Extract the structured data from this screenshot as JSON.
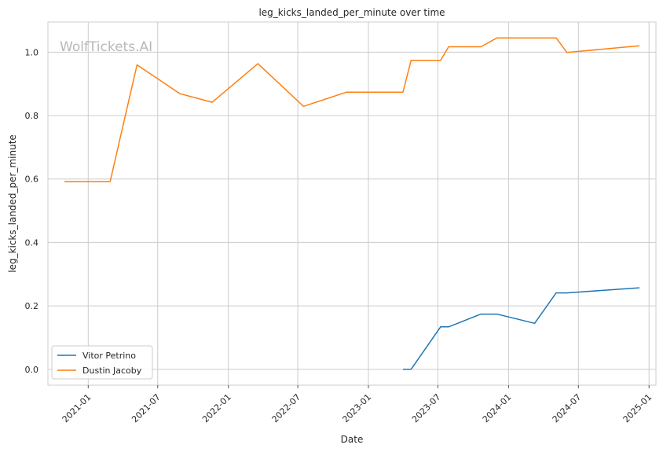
{
  "chart_data": {
    "type": "line",
    "title": "leg_kicks_landed_per_minute over time",
    "xlabel": "Date",
    "ylabel": "leg_kicks_landed_per_minute",
    "watermark": "WolfTickets.AI",
    "x_ticks": [
      "2021-01",
      "2021-07",
      "2022-01",
      "2022-07",
      "2023-01",
      "2023-07",
      "2024-01",
      "2024-07",
      "2025-01"
    ],
    "y_ticks": [
      0.0,
      0.2,
      0.4,
      0.6,
      0.8,
      1.0
    ],
    "xlim": [
      "2020-09-18",
      "2025-01-19"
    ],
    "ylim": [
      -0.05,
      1.095
    ],
    "grid": true,
    "legend_position": "lower-left",
    "series": [
      {
        "name": "Vitor Petrino",
        "color": "#1f77b4",
        "points": [
          [
            "2023-04-01",
            0.0
          ],
          [
            "2023-04-22",
            0.0
          ],
          [
            "2023-07-08",
            0.134
          ],
          [
            "2023-07-29",
            0.134
          ],
          [
            "2023-10-21",
            0.174
          ],
          [
            "2023-12-02",
            0.174
          ],
          [
            "2024-03-09",
            0.145
          ],
          [
            "2024-05-04",
            0.241
          ],
          [
            "2024-06-01",
            0.241
          ],
          [
            "2024-12-07",
            0.257
          ]
        ]
      },
      {
        "name": "Dustin Jacoby",
        "color": "#ff7f0e",
        "points": [
          [
            "2020-10-31",
            0.592
          ],
          [
            "2021-02-27",
            0.592
          ],
          [
            "2021-05-08",
            0.96
          ],
          [
            "2021-08-28",
            0.869
          ],
          [
            "2021-11-20",
            0.842
          ],
          [
            "2022-03-19",
            0.964
          ],
          [
            "2022-07-16",
            0.829
          ],
          [
            "2022-11-05",
            0.874
          ],
          [
            "2023-04-01",
            0.874
          ],
          [
            "2023-04-22",
            0.974
          ],
          [
            "2023-07-08",
            0.974
          ],
          [
            "2023-07-29",
            1.017
          ],
          [
            "2023-10-21",
            1.017
          ],
          [
            "2023-12-02",
            1.045
          ],
          [
            "2024-03-09",
            1.045
          ],
          [
            "2024-05-04",
            1.045
          ],
          [
            "2024-06-01",
            0.999
          ],
          [
            "2024-12-07",
            1.02
          ]
        ]
      }
    ]
  }
}
